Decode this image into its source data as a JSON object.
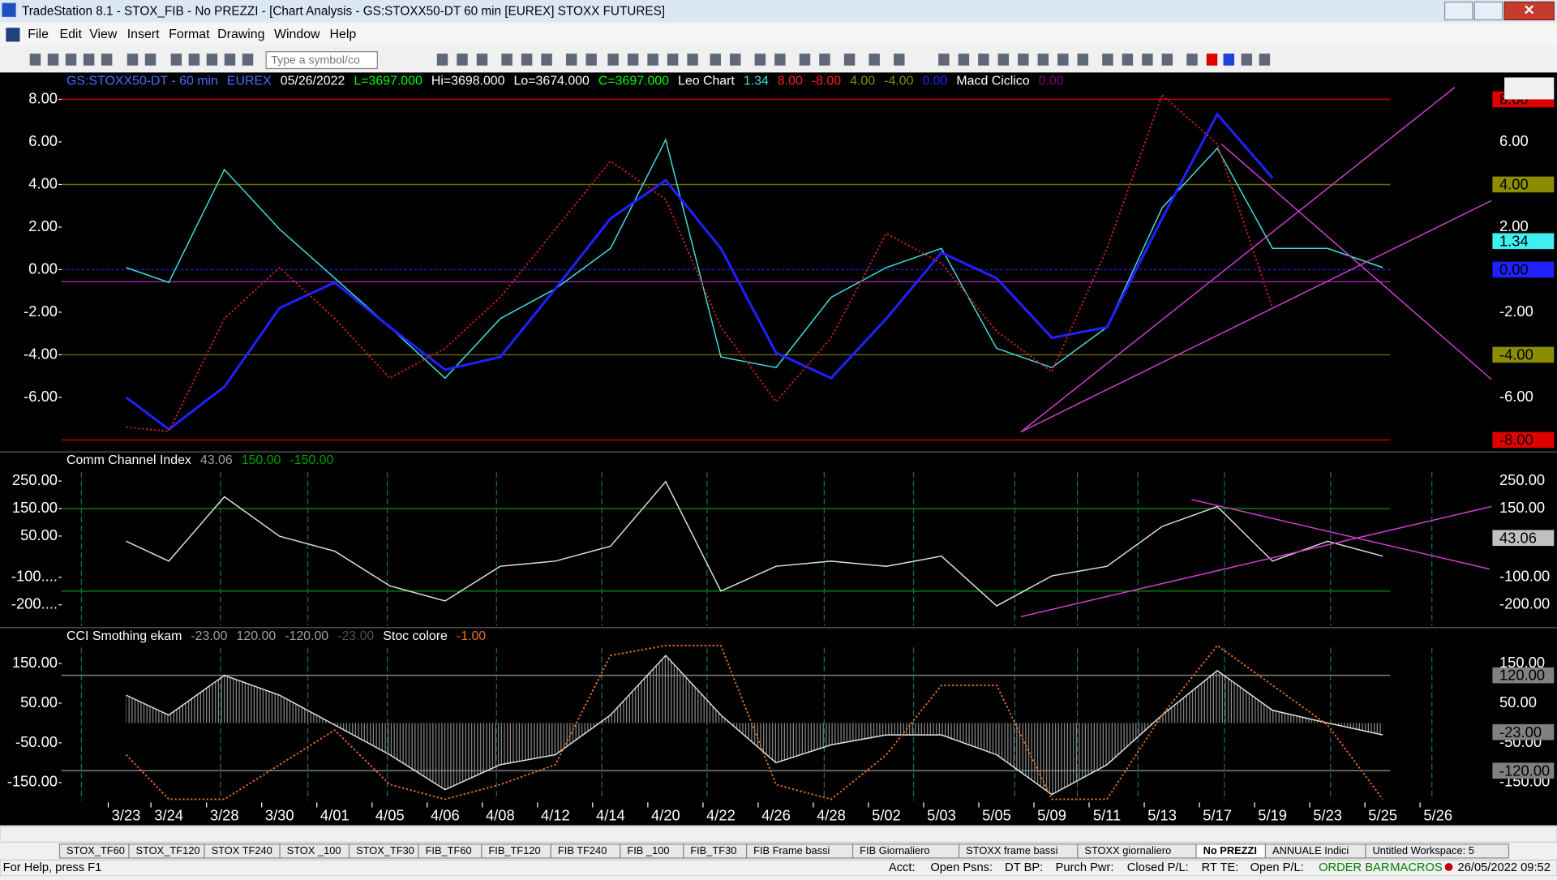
{
  "window": {
    "title": "TradeStation 8.1 - STOX_FIB - No PREZZI - [Chart Analysis - GS:STOXX50-DT  60 min  [EUREX] STOXX FUTURES]",
    "menu": [
      "File",
      "Edit",
      "View",
      "Insert",
      "Format",
      "Drawing",
      "Window",
      "Help"
    ],
    "symbol_input": "Type a symbol/co"
  },
  "chart_data": [
    {
      "type": "line",
      "header": [
        {
          "text": "GS:STOXX50-DT - 60 min",
          "color": "#4a6cff"
        },
        {
          "text": "EUREX",
          "color": "#4a6cff"
        },
        {
          "text": "05/26/2022",
          "color": "#ffffff"
        },
        {
          "text": "L=3697.000",
          "color": "#00ff00"
        },
        {
          "text": "Hi=3698.000",
          "color": "#ffffff"
        },
        {
          "text": "Lo=3674.000",
          "color": "#ffffff"
        },
        {
          "text": "C=3697.000",
          "color": "#00ff00"
        },
        {
          "text": "Leo Chart",
          "color": "#ffffff"
        },
        {
          "text": "1.34",
          "color": "#40e0e0"
        },
        {
          "text": "8.00",
          "color": "#ff2020"
        },
        {
          "text": "-8.00",
          "color": "#ff2020"
        },
        {
          "text": "4.00",
          "color": "#8c8c00"
        },
        {
          "text": "-4.00",
          "color": "#8c8c00"
        },
        {
          "text": "0.00",
          "color": "#2020ff"
        },
        {
          "text": "Macd Ciclico",
          "color": "#ffffff"
        },
        {
          "text": "0.00",
          "color": "#800080"
        }
      ],
      "ylim": [
        -8.56,
        9.26
      ],
      "yticks": [
        {
          "value": 8,
          "label": "8.00"
        },
        {
          "value": 6,
          "label": "6.00"
        },
        {
          "value": 4,
          "label": "4.00"
        },
        {
          "value": 2,
          "label": "2.00"
        },
        {
          "value": 0,
          "label": "0.00"
        },
        {
          "value": -2,
          "label": "-2.00"
        },
        {
          "value": -4,
          "label": "-4.00"
        },
        {
          "value": -6,
          "label": "-6.00"
        }
      ],
      "levels": [
        {
          "value": 8,
          "color": "#d00000"
        },
        {
          "value": 4,
          "color": "#6b6b00"
        },
        {
          "value": 0,
          "color": "#2020c0"
        },
        {
          "value": -0.57,
          "color": "#a020a0"
        },
        {
          "value": -4,
          "color": "#6b6b00"
        },
        {
          "value": -8,
          "color": "#d00000"
        }
      ],
      "value_boxes": [
        {
          "value": 8,
          "label": "8.00",
          "color": "#e00000"
        },
        {
          "value": 4,
          "label": "4.00",
          "color": "#8c8c00"
        },
        {
          "value": 1.34,
          "label": "1.34",
          "color": "#40f0f0"
        },
        {
          "value": 0,
          "label": "0.00",
          "color": "#2020ff"
        },
        {
          "value": -4,
          "label": "-4.00",
          "color": "#8c8c00"
        },
        {
          "value": -8,
          "label": "-8.00",
          "color": "#e00000"
        }
      ],
      "series": [
        {
          "name": "Leo Chart",
          "color": "#40e0e0",
          "style": "solid",
          "values": [
            0.1,
            -0.6,
            4.7,
            1.9,
            -0.4,
            -2.7,
            -5.1,
            -2.3,
            -0.9,
            1.0,
            6.1,
            -4.1,
            -4.6,
            -1.3,
            0.1,
            1.0,
            -3.7,
            -4.6,
            -2.7,
            2.9,
            5.7,
            1.0,
            1.0,
            0.1,
            null
          ]
        },
        {
          "name": "Macd Ciclico",
          "color": "#2020ff",
          "style": "solid",
          "values": [
            -6,
            -7.5,
            -5.5,
            -1.8,
            -0.6,
            -2.7,
            -4.7,
            -4.1,
            -0.9,
            2.4,
            4.2,
            1.0,
            -3.9,
            -5.1,
            -2.3,
            0.8,
            -0.4,
            -3.2,
            -2.7,
            2.4,
            7.3,
            4.3,
            null,
            null,
            null
          ]
        },
        {
          "name": "Leo Chart",
          "color": "#c02020",
          "style": "dotted",
          "values": [
            -7.4,
            -7.6,
            -2.3,
            0.1,
            -2.3,
            -5.1,
            -3.7,
            -1.3,
            1.9,
            5.1,
            3.3,
            -2.7,
            -6.2,
            -3.2,
            1.7,
            0.3,
            -2.9,
            -4.8,
            1.0,
            8.2,
            5.9,
            -1.8,
            null,
            null,
            null
          ]
        }
      ]
    },
    {
      "type": "line",
      "header": [
        {
          "text": "Comm Channel Index",
          "color": "#ffffff"
        },
        {
          "text": "43.06",
          "color": "#a0a0a0"
        },
        {
          "text": "150.00",
          "color": "#00a000"
        },
        {
          "text": "-150.00",
          "color": "#00a000"
        }
      ],
      "ylim": [
        -283,
        356
      ],
      "yticks": [
        {
          "value": 250,
          "label": "250.00"
        },
        {
          "value": 150,
          "label": "150.00"
        },
        {
          "value": 50,
          "label": "50.00"
        },
        {
          "value": -100,
          "label": "-100...."
        },
        {
          "value": -200,
          "label": "-200...."
        }
      ],
      "right_ticks": [
        {
          "value": 250,
          "label": "250.00"
        },
        {
          "value": 150,
          "label": "150.00"
        },
        {
          "value": -100,
          "label": "-100.00"
        },
        {
          "value": -200,
          "label": "-200.00"
        }
      ],
      "levels": [
        {
          "value": 150,
          "color": "#008000"
        },
        {
          "value": -150,
          "color": "#008000"
        }
      ],
      "value_boxes": [
        {
          "value": 43.06,
          "label": "43.06",
          "color": "#c0c0c0"
        }
      ],
      "series": [
        {
          "name": "Comm Channel Index",
          "color": "#e0e0e0",
          "style": "solid",
          "values": [
            31,
            -41,
            193,
            49,
            -5,
            -131,
            -186,
            -60,
            -41,
            13,
            248,
            -150,
            -60,
            -41,
            -60,
            -23,
            -204,
            -95,
            -60,
            85,
            157,
            -41,
            31,
            -23,
            null
          ]
        }
      ]
    },
    {
      "type": "line",
      "header": [
        {
          "text": "CCI Smothing ekam",
          "color": "#ffffff"
        },
        {
          "text": "-23.00",
          "color": "#a0a0a0"
        },
        {
          "text": "120.00",
          "color": "#a0a0a0"
        },
        {
          "text": "-120.00",
          "color": "#a0a0a0"
        },
        {
          "text": "-23.00",
          "color": "#505050"
        },
        {
          "text": "Stoc colore",
          "color": "#ffffff"
        },
        {
          "text": "-1.00",
          "color": "#e07020"
        }
      ],
      "ylim": [
        -200,
        240
      ],
      "yticks": [
        {
          "value": 150,
          "label": "150.00"
        },
        {
          "value": 50,
          "label": "50.00"
        },
        {
          "value": -50,
          "label": "-50.00"
        },
        {
          "value": -150,
          "label": "-150.00"
        }
      ],
      "levels": [
        {
          "value": 120,
          "color": "#808080"
        },
        {
          "value": -120,
          "color": "#808080"
        }
      ],
      "value_boxes": [
        {
          "value": 120,
          "label": "120.00",
          "color": "#808080"
        },
        {
          "value": -23,
          "label": "-23.00",
          "color": "#808080"
        },
        {
          "value": -120,
          "label": "-120.00",
          "color": "#808080"
        }
      ],
      "categories": [
        "3/23",
        "3/24",
        "3/28",
        "3/30",
        "4/01",
        "4/05",
        "4/06",
        "4/08",
        "4/12",
        "4/14",
        "4/20",
        "4/22",
        "4/26",
        "4/28",
        "5/02",
        "5/03",
        "5/05",
        "5/09",
        "5/11",
        "5/13",
        "5/17",
        "5/19",
        "5/23",
        "5/25",
        "5/26"
      ],
      "series": [
        {
          "name": "CCI Smothing ekam",
          "color": "#e0e0e0",
          "style": "solid",
          "area": true,
          "values": [
            70,
            20,
            120,
            70,
            -5,
            -80,
            -168,
            -105,
            -80,
            20,
            170,
            20,
            -100,
            -55,
            -30,
            -30,
            -80,
            -180,
            -105,
            20,
            132,
            32,
            0,
            -30,
            null
          ]
        },
        {
          "name": "Stoc colore",
          "color": "#e07020",
          "style": "dotted",
          "values": [
            -80,
            -192,
            -192,
            -105,
            -18,
            -155,
            -192,
            -155,
            -105,
            170,
            195,
            195,
            -155,
            -192,
            -80,
            95,
            95,
            -192,
            -192,
            20,
            195,
            95,
            -5,
            -192,
            null
          ]
        }
      ]
    }
  ],
  "tabs": [
    {
      "label": "STOX_TF60"
    },
    {
      "label": "STOX_TF120"
    },
    {
      "label": "STOX TF240"
    },
    {
      "label": "STOX _100"
    },
    {
      "label": "STOX_TF30"
    },
    {
      "label": "FIB_TF60"
    },
    {
      "label": "FIB_TF120"
    },
    {
      "label": "FIB TF240"
    },
    {
      "label": "FIB _100"
    },
    {
      "label": "FIB_TF30"
    },
    {
      "label": "FIB Frame bassi"
    },
    {
      "label": "FIB Giornaliero"
    },
    {
      "label": "STOXX frame bassi"
    },
    {
      "label": "STOXX giornaliero"
    },
    {
      "label": "No PREZZI",
      "active": true
    },
    {
      "label": "ANNUALE Indici"
    },
    {
      "label": "Untitled Workspace: 5"
    }
  ],
  "status_bar": {
    "help": "For Help, press F1",
    "fields": [
      "Acct:",
      "Open Psns:",
      "DT BP:",
      "Purch Pwr:",
      "Closed P/L:",
      "RT TE:",
      "Open P/L:"
    ],
    "order_bar": "ORDER BAR",
    "macros": "MACROS",
    "datetime": "26/05/2022 09:52"
  }
}
